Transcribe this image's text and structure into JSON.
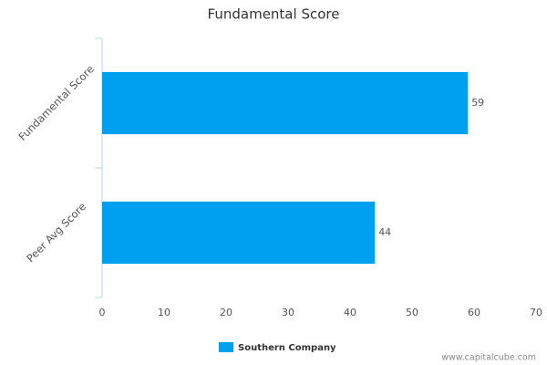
{
  "chart_data": {
    "type": "bar",
    "orientation": "horizontal",
    "title": "Fundamental Score",
    "categories": [
      "Fundamental Score",
      "Peer Avg Score"
    ],
    "series": [
      {
        "name": "Southern Company",
        "color": "#00a0f0",
        "values": [
          59,
          44
        ]
      }
    ],
    "xlim": [
      0,
      70
    ],
    "xticks": [
      0,
      10,
      20,
      30,
      40,
      50,
      60,
      70
    ],
    "grid": false,
    "legend": "bottom",
    "watermark": "www.capitalcube.com"
  }
}
